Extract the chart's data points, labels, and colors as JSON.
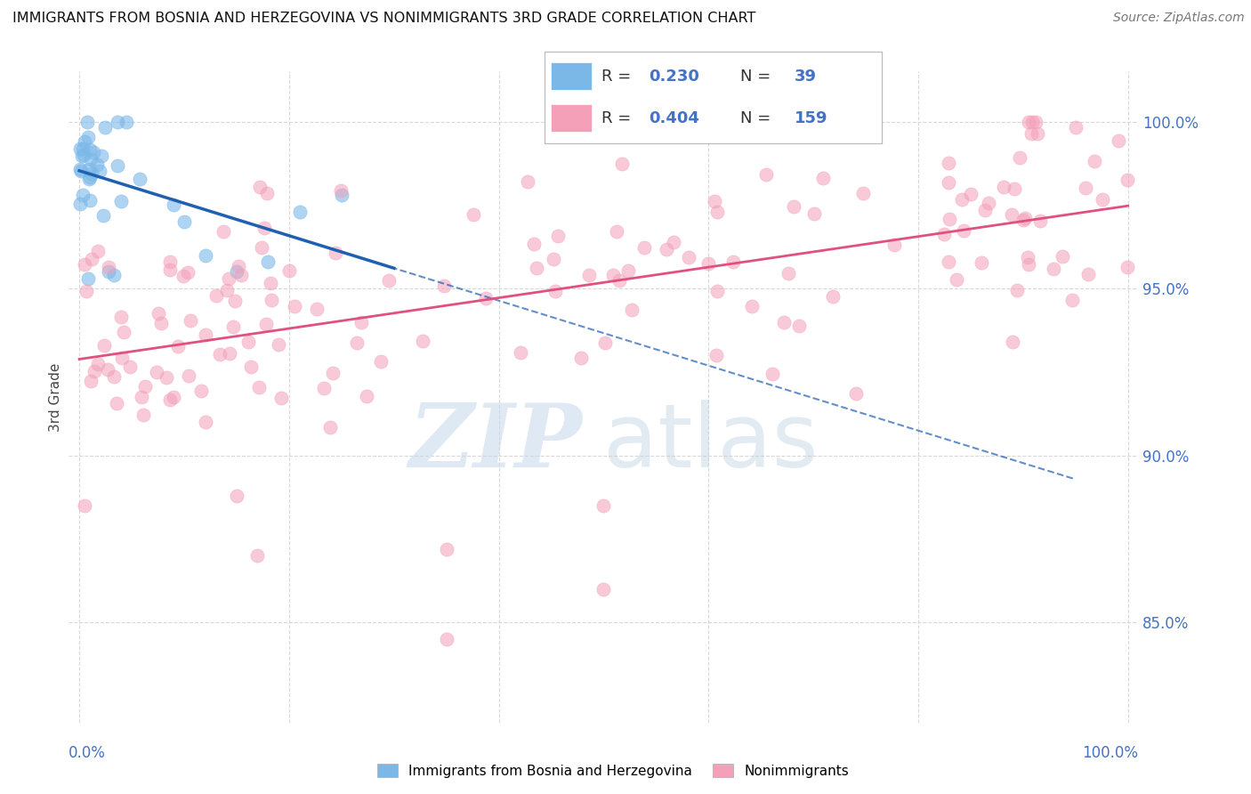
{
  "title": "IMMIGRANTS FROM BOSNIA AND HERZEGOVINA VS NONIMMIGRANTS 3RD GRADE CORRELATION CHART",
  "source": "Source: ZipAtlas.com",
  "ylabel": "3rd Grade",
  "blue_color": "#7bb8e8",
  "pink_color": "#f4a0b8",
  "trend_blue": "#2060b0",
  "trend_pink": "#e05080",
  "background": "#ffffff",
  "grid_color": "#d8d8d8",
  "legend_blue_text": "R = 0.230   N =  39",
  "legend_pink_text": "R = 0.404   N = 159",
  "ytick_vals": [
    85.0,
    90.0,
    95.0,
    100.0
  ],
  "ytick_labels": [
    "85.0%",
    "90.0%",
    "95.0%",
    "100.0%"
  ],
  "ymin": 82.0,
  "ymax": 101.5,
  "xmin": -0.01,
  "xmax": 1.01,
  "blue_R": 0.23,
  "pink_R": 0.404,
  "blue_N": 39,
  "pink_N": 159
}
